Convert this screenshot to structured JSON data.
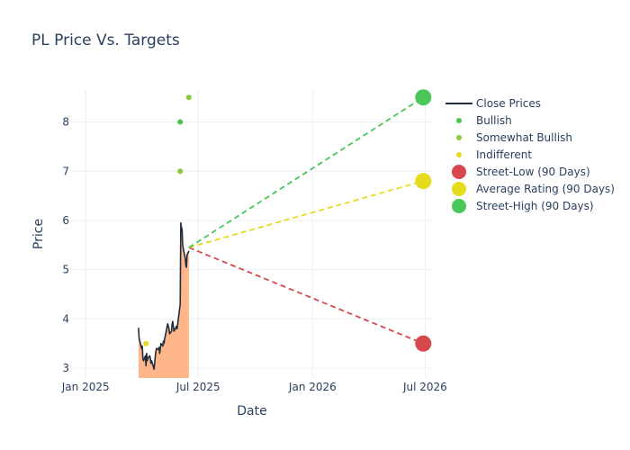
{
  "chart_data": {
    "type": "line",
    "title": "PL Price Vs. Targets",
    "xlabel": "Date",
    "ylabel": "Price",
    "x_ticks": [
      "Jan 2025",
      "Jul 2025",
      "Jan 2026",
      "Jul 2026"
    ],
    "x_tick_dates": [
      "2025-01-01",
      "2025-07-01",
      "2026-01-01",
      "2026-07-01"
    ],
    "y_ticks": [
      3,
      4,
      5,
      6,
      7,
      8
    ],
    "xlim": [
      "2024-12-10",
      "2026-07-12"
    ],
    "ylim": [
      2.8,
      8.65
    ],
    "grid": true,
    "legend_position": "right",
    "close_prices": {
      "name": "Close Prices",
      "color": "#1f2d3d",
      "fill_color": "#ffb68a",
      "points": [
        [
          "2025-03-27",
          3.82
        ],
        [
          "2025-03-28",
          3.6
        ],
        [
          "2025-03-31",
          3.45
        ],
        [
          "2025-04-01",
          3.4
        ],
        [
          "2025-04-02",
          3.45
        ],
        [
          "2025-04-03",
          3.2
        ],
        [
          "2025-04-04",
          3.15
        ],
        [
          "2025-04-07",
          3.25
        ],
        [
          "2025-04-08",
          3.05
        ],
        [
          "2025-04-09",
          3.3
        ],
        [
          "2025-04-10",
          3.15
        ],
        [
          "2025-04-11",
          3.2
        ],
        [
          "2025-04-14",
          3.25
        ],
        [
          "2025-04-15",
          3.2
        ],
        [
          "2025-04-16",
          3.1
        ],
        [
          "2025-04-17",
          3.15
        ],
        [
          "2025-04-21",
          2.98
        ],
        [
          "2025-04-22",
          3.1
        ],
        [
          "2025-04-23",
          3.25
        ],
        [
          "2025-04-24",
          3.35
        ],
        [
          "2025-04-25",
          3.4
        ],
        [
          "2025-04-28",
          3.38
        ],
        [
          "2025-04-29",
          3.42
        ],
        [
          "2025-04-30",
          3.3
        ],
        [
          "2025-05-01",
          3.4
        ],
        [
          "2025-05-02",
          3.5
        ],
        [
          "2025-05-05",
          3.45
        ],
        [
          "2025-05-06",
          3.55
        ],
        [
          "2025-05-07",
          3.5
        ],
        [
          "2025-05-08",
          3.6
        ],
        [
          "2025-05-09",
          3.65
        ],
        [
          "2025-05-12",
          3.85
        ],
        [
          "2025-05-13",
          3.9
        ],
        [
          "2025-05-14",
          3.85
        ],
        [
          "2025-05-15",
          3.8
        ],
        [
          "2025-05-16",
          3.7
        ],
        [
          "2025-05-19",
          3.75
        ],
        [
          "2025-05-20",
          3.9
        ],
        [
          "2025-05-21",
          3.95
        ],
        [
          "2025-05-22",
          3.85
        ],
        [
          "2025-05-23",
          3.75
        ],
        [
          "2025-05-27",
          3.85
        ],
        [
          "2025-05-28",
          3.8
        ],
        [
          "2025-06-02",
          4.3
        ],
        [
          "2025-06-03",
          5.95
        ],
        [
          "2025-06-04",
          5.85
        ],
        [
          "2025-06-05",
          5.83
        ],
        [
          "2025-06-06",
          5.5
        ],
        [
          "2025-06-09",
          5.3
        ],
        [
          "2025-06-10",
          5.25
        ],
        [
          "2025-06-11",
          5.1
        ],
        [
          "2025-06-12",
          5.05
        ],
        [
          "2025-06-13",
          5.3
        ],
        [
          "2025-06-16",
          5.38
        ]
      ]
    },
    "ratings": [
      {
        "name": "Bullish",
        "color": "#4bc64b",
        "points": [
          [
            "2025-06-02",
            8.0
          ]
        ]
      },
      {
        "name": "Somewhat Bullish",
        "color": "#8acb3c",
        "points": [
          [
            "2025-06-02",
            7.0
          ],
          [
            "2025-06-16",
            8.5
          ]
        ]
      },
      {
        "name": "Indifferent",
        "color": "#e4dc1c",
        "points": [
          [
            "2025-04-08",
            3.5
          ]
        ]
      }
    ],
    "targets": {
      "start": [
        "2025-06-16",
        5.45
      ],
      "end_date": "2026-06-28",
      "lines": [
        {
          "name": "Street-Low (90 Days)",
          "color": "#d6474e",
          "value": 3.5
        },
        {
          "name": "Average Rating (90 Days)",
          "color": "#e4dc1c",
          "value": 6.8
        },
        {
          "name": "Street-High (90 Days)",
          "color": "#4bc65a",
          "value": 8.5
        }
      ]
    },
    "legend": [
      {
        "label": "Close Prices",
        "kind": "line",
        "color": "#1f2d3d"
      },
      {
        "label": "Bullish",
        "kind": "dot",
        "color": "#4bc64b"
      },
      {
        "label": "Somewhat Bullish",
        "kind": "dot",
        "color": "#8acb3c"
      },
      {
        "label": "Indifferent",
        "kind": "dot",
        "color": "#e4dc1c"
      },
      {
        "label": "Street-Low (90 Days)",
        "kind": "bigdot",
        "color": "#d6474e"
      },
      {
        "label": "Average Rating (90 Days)",
        "kind": "bigdot",
        "color": "#e4dc1c"
      },
      {
        "label": "Street-High (90 Days)",
        "kind": "bigdot",
        "color": "#4bc65a"
      }
    ]
  }
}
